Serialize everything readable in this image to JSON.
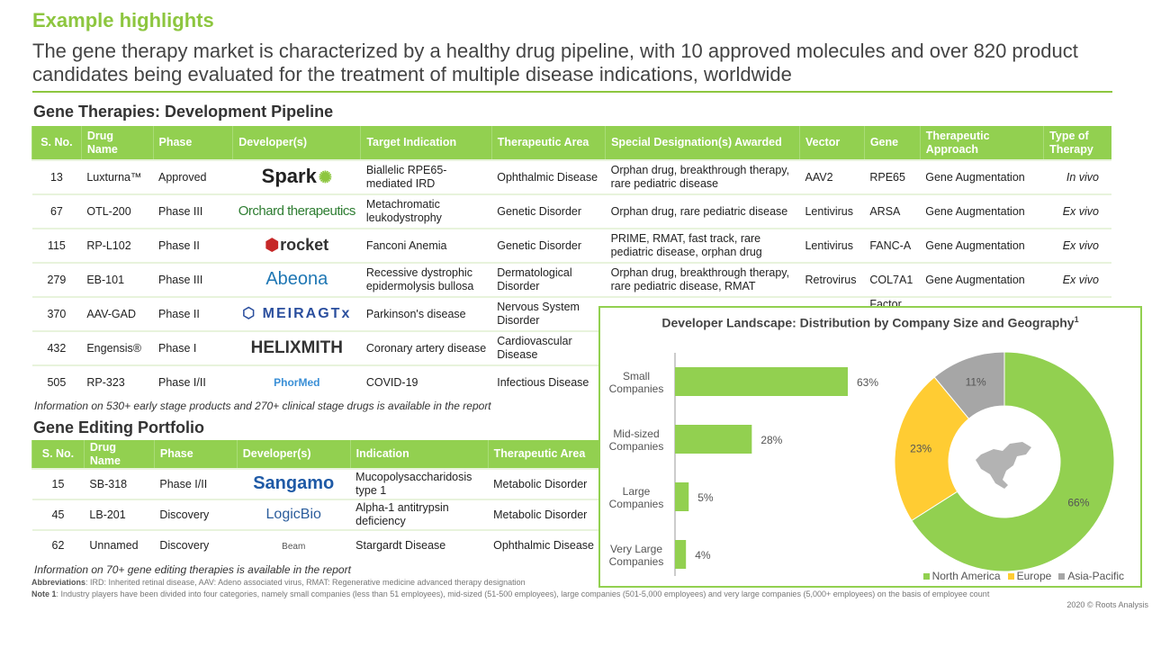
{
  "header": {
    "title": "Example highlights",
    "subtitle": "The gene therapy market is characterized by a healthy drug pipeline, with 10 approved molecules and over 820 product candidates being evaluated for the treatment of multiple disease indications, worldwide"
  },
  "pipeline": {
    "title": "Gene Therapies: Development Pipeline",
    "columns": [
      "S. No.",
      "Drug Name",
      "Phase",
      "Developer(s)",
      "Target Indication",
      "Therapeutic Area",
      "Special Designation(s) Awarded",
      "Vector",
      "Gene",
      "Therapeutic Approach",
      "Type of Therapy"
    ],
    "rows": [
      {
        "sno": "13",
        "drug": "Luxturna™",
        "phase": "Approved",
        "developer": "Spark",
        "indication": "Biallelic RPE65-mediated IRD",
        "area": "Ophthalmic Disease",
        "designation": "Orphan drug, breakthrough therapy, rare pediatric disease",
        "vector": "AAV2",
        "gene": "RPE65",
        "approach": "Gene Augmentation",
        "type": "In vivo"
      },
      {
        "sno": "67",
        "drug": "OTL-200",
        "phase": "Phase III",
        "developer": "Orchard therapeutics",
        "indication": "Metachromatic leukodystrophy",
        "area": "Genetic Disorder",
        "designation": "Orphan drug, rare pediatric disease",
        "vector": "Lentivirus",
        "gene": "ARSA",
        "approach": "Gene Augmentation",
        "type": "Ex vivo"
      },
      {
        "sno": "115",
        "drug": "RP-L102",
        "phase": "Phase II",
        "developer": "rocket",
        "indication": "Fanconi Anemia",
        "area": "Genetic Disorder",
        "designation": "PRIME, RMAT, fast track, rare pediatric disease, orphan drug",
        "vector": "Lentivirus",
        "gene": "FANC-A",
        "approach": "Gene Augmentation",
        "type": "Ex vivo"
      },
      {
        "sno": "279",
        "drug": "EB-101",
        "phase": "Phase III",
        "developer": "Abeona",
        "indication": "Recessive dystrophic epidermolysis bullosa",
        "area": "Dermatological Disorder",
        "designation": "Orphan drug, breakthrough therapy, rare pediatric disease, RMAT",
        "vector": "Retrovirus",
        "gene": "COL7A1",
        "approach": "Gene Augmentation",
        "type": "Ex vivo"
      },
      {
        "sno": "370",
        "drug": "AAV-GAD",
        "phase": "Phase II",
        "developer": "MEIRAGTx",
        "indication": "Parkinson's disease",
        "area": "Nervous System Disorder",
        "designation": "",
        "vector": "",
        "gene": "Factor",
        "approach": "",
        "type": ""
      },
      {
        "sno": "432",
        "drug": "Engensis®",
        "phase": "Phase I",
        "developer": "HELIXMITH",
        "indication": "Coronary artery disease",
        "area": "Cardiovascular Disease",
        "designation": "",
        "vector": "",
        "gene": "",
        "approach": "",
        "type": ""
      },
      {
        "sno": "505",
        "drug": "RP-323",
        "phase": "Phase I/II",
        "developer": "PhorMed",
        "indication": "COVID-19",
        "area": "Infectious Disease",
        "designation": "",
        "vector": "",
        "gene": "",
        "approach": "",
        "type": ""
      }
    ],
    "note": "Information on 530+ early stage products and 270+ clinical stage drugs is available in the report"
  },
  "editing": {
    "title": "Gene Editing Portfolio",
    "columns": [
      "S. No.",
      "Drug Name",
      "Phase",
      "Developer(s)",
      "Indication",
      "Therapeutic Area"
    ],
    "rows": [
      {
        "sno": "15",
        "drug": "SB-318",
        "phase": "Phase I/II",
        "developer": "Sangamo",
        "indication": "Mucopolysaccharidosis type 1",
        "area": "Metabolic Disorder"
      },
      {
        "sno": "45",
        "drug": "LB-201",
        "phase": "Discovery",
        "developer": "LogicBio",
        "indication": "Alpha-1 antitrypsin deficiency",
        "area": "Metabolic Disorder"
      },
      {
        "sno": "62",
        "drug": "Unnamed",
        "phase": "Discovery",
        "developer": "Beam",
        "indication": "Stargardt Disease",
        "area": "Ophthalmic Disease"
      }
    ],
    "note": "Information on 70+ gene editing therapies is available in the report"
  },
  "footer": {
    "abbr_label": "Abbreviations",
    "abbr_text": ": IRD: Inherited retinal disease, AAV: Adeno associated virus, RMAT: Regenerative medicine advanced therapy designation",
    "note_label": "Note 1",
    "note_text": ": Industry players have been divided into four categories, namely small companies (less than 51 employees), mid-sized (51-500 employees), large companies (501-5,000 employees) and very large companies (5,000+ employees) on the basis of employee count",
    "copyright": "2020 © Roots Analysis"
  },
  "chart_data": [
    {
      "type": "bar",
      "orientation": "horizontal",
      "title": "Developer Landscape: Distribution by Company Size and Geography",
      "title_superscript": "1",
      "categories": [
        "Small Companies",
        "Mid-sized Companies",
        "Large Companies",
        "Very Large Companies"
      ],
      "values": [
        63,
        28,
        5,
        4
      ],
      "labels": [
        "63%",
        "28%",
        "5%",
        "4%"
      ],
      "xlim": [
        0,
        70
      ],
      "grid": false,
      "color": "#92d050"
    },
    {
      "type": "pie",
      "style": "donut",
      "categories": [
        "North America",
        "Europe",
        "Asia-Pacific"
      ],
      "values": [
        66,
        23,
        11
      ],
      "labels": [
        "66%",
        "23%",
        "11%"
      ],
      "colors": [
        "#92d050",
        "#ffcc33",
        "#a6a6a6"
      ],
      "legend": "bottom-right",
      "center_icon": "north-america-map"
    }
  ]
}
